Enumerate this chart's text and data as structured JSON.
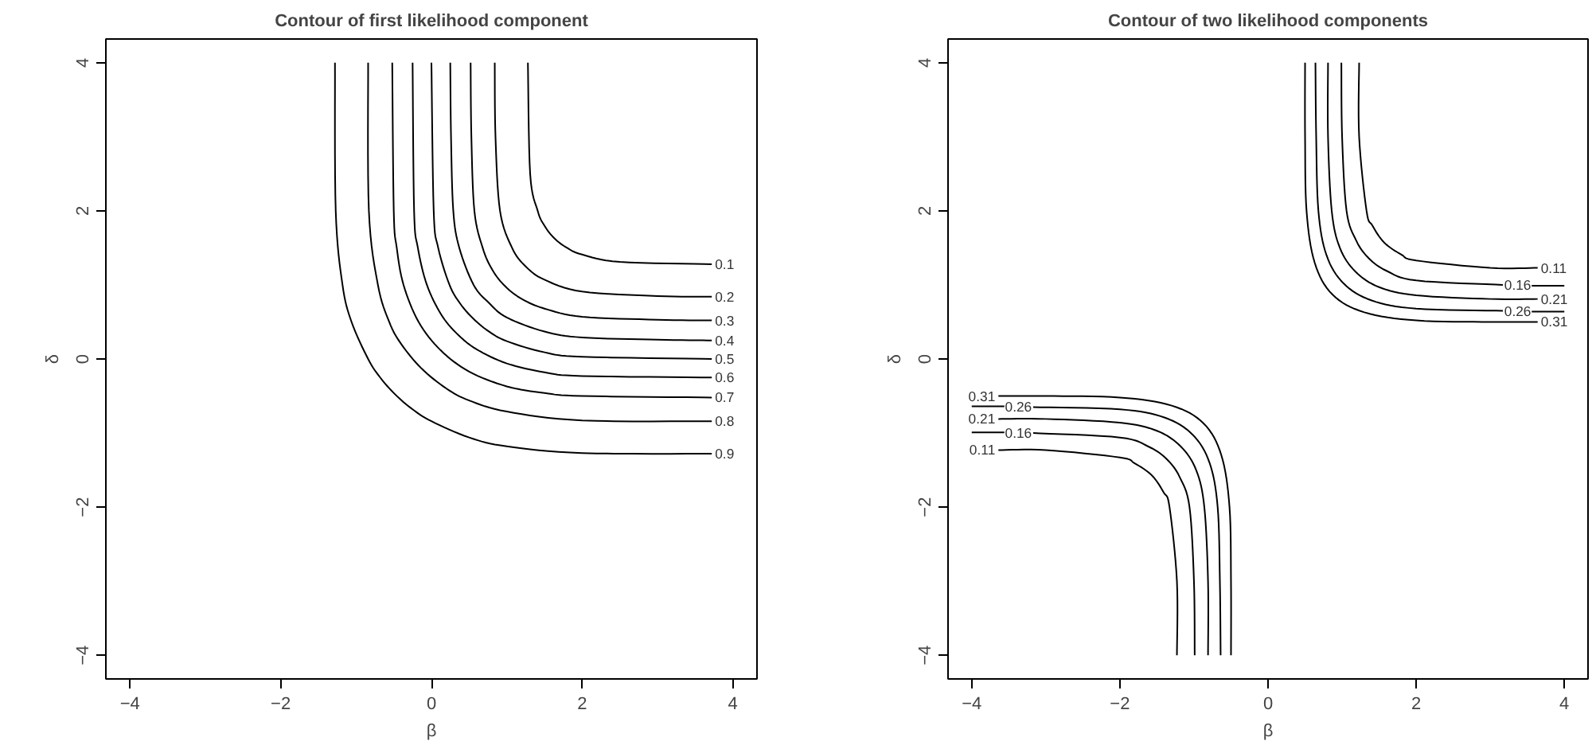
{
  "chart_data": [
    {
      "type": "line",
      "title": "Contour of first likelihood component",
      "xlabel": "β",
      "ylabel": "δ",
      "xlim": [
        -4.32,
        4.32
      ],
      "ylim": [
        -4.32,
        4.32
      ],
      "xticks": [
        -4,
        -2,
        0,
        2,
        4
      ],
      "yticks": [
        -4,
        -2,
        0,
        2,
        4
      ],
      "grid": false,
      "series": [
        {
          "name": "0.1",
          "color": "#000000",
          "x": [
            1.28,
            1.31,
            1.41,
            1.5,
            1.63,
            1.8,
            2,
            2.5,
            3.72
          ],
          "values": [
            4,
            2.5,
            2,
            1.8,
            1.63,
            1.5,
            1.41,
            1.31,
            1.28
          ]
        },
        {
          "name": "0.2",
          "color": "#000000",
          "x": [
            0.84,
            0.85,
            0.91,
            1.07,
            1.25,
            1.5,
            2,
            3,
            3.72
          ],
          "values": [
            4,
            3,
            2,
            1.5,
            1.25,
            1.07,
            0.91,
            0.85,
            0.84
          ]
        },
        {
          "name": "0.3",
          "color": "#000000",
          "x": [
            0.52,
            0.53,
            0.57,
            0.68,
            0.81,
            0.98,
            1.2,
            1.5,
            2,
            3,
            3.72
          ],
          "values": [
            4,
            3,
            2,
            1.5,
            1.2,
            0.98,
            0.81,
            0.68,
            0.57,
            0.53,
            0.52
          ]
        },
        {
          "name": "0.4",
          "color": "#000000",
          "x": [
            0.25,
            0.26,
            0.29,
            0.37,
            0.56,
            0.76,
            1,
            1.5,
            2,
            3,
            3.72
          ],
          "values": [
            4,
            3,
            2,
            1.5,
            1,
            0.76,
            0.56,
            0.37,
            0.29,
            0.26,
            0.25
          ]
        },
        {
          "name": "0.5",
          "color": "#000000",
          "x": [
            0,
            0.03,
            0.09,
            0.24,
            0.38,
            0.55,
            0.75,
            1,
            1.5,
            2,
            3.72
          ],
          "values": [
            4,
            2,
            1.5,
            1,
            0.75,
            0.55,
            0.38,
            0.24,
            0.09,
            0.03,
            0
          ]
        },
        {
          "name": "0.6",
          "color": "#000000",
          "x": [
            -0.25,
            -0.23,
            -0.18,
            -0.06,
            0.13,
            0.34,
            0.6,
            1,
            1.5,
            2,
            3.72
          ],
          "values": [
            4,
            2,
            1.5,
            1,
            0.6,
            0.34,
            0.13,
            -0.06,
            -0.18,
            -0.23,
            -0.25
          ]
        },
        {
          "name": "0.7",
          "color": "#000000",
          "x": [
            -0.52,
            -0.5,
            -0.46,
            -0.37,
            -0.17,
            0.12,
            0.5,
            1,
            1.5,
            2,
            3.72
          ],
          "values": [
            4,
            2,
            1.5,
            1,
            0.5,
            0.12,
            -0.17,
            -0.37,
            -0.46,
            -0.5,
            -0.52
          ]
        },
        {
          "name": "0.8",
          "color": "#000000",
          "x": [
            -0.84,
            -0.83,
            -0.71,
            -0.56,
            -0.4,
            -0.13,
            0.2,
            0.5,
            1,
            2,
            3.72
          ],
          "values": [
            4,
            2,
            1,
            0.5,
            0.2,
            -0.13,
            -0.4,
            -0.56,
            -0.71,
            -0.83,
            -0.84
          ]
        },
        {
          "name": "0.9",
          "color": "#000000",
          "x": [
            -1.28,
            -1.27,
            -1.18,
            -1.06,
            -0.84,
            -0.68,
            -0.48,
            -0.25,
            0,
            0.5,
            1,
            2,
            3.72
          ],
          "values": [
            4,
            2,
            1,
            0.5,
            0,
            -0.25,
            -0.48,
            -0.68,
            -0.84,
            -1.06,
            -1.18,
            -1.27,
            -1.28
          ]
        }
      ]
    },
    {
      "type": "line",
      "title": "Contour of two likelihood components",
      "xlabel": "β",
      "ylabel": "δ",
      "xlim": [
        -4.32,
        4.32
      ],
      "ylim": [
        -4.32,
        4.32
      ],
      "xticks": [
        -4,
        -2,
        0,
        2,
        4
      ],
      "yticks": [
        -4,
        -2,
        0,
        2,
        4
      ],
      "grid": false,
      "series": [
        {
          "name": "0.11",
          "color": "#000000",
          "x": [
            1.23,
            1.23,
            1.33,
            1.41,
            1.57,
            1.8,
            2,
            3,
            3.64
          ],
          "values": [
            4,
            3,
            2,
            1.8,
            1.57,
            1.41,
            1.33,
            1.23,
            1.23
          ]
        },
        {
          "name": "0.16",
          "color": "#000000",
          "x": [
            0.99,
            1,
            1.06,
            1.19,
            1.36,
            1.6,
            2,
            3.17,
            3.37,
            3.56,
            4
          ],
          "values": [
            4,
            3,
            2,
            1.6,
            1.36,
            1.19,
            1.06,
            1,
            null,
            0.99,
            0.99
          ]
        },
        {
          "name": "0.21",
          "color": "#000000",
          "x": [
            0.81,
            0.81,
            0.86,
            0.97,
            1.18,
            1.5,
            2,
            3,
            3.64
          ],
          "values": [
            4,
            3,
            2,
            1.5,
            1.18,
            0.97,
            0.86,
            0.81,
            0.81
          ]
        },
        {
          "name": "0.26",
          "color": "#000000",
          "x": [
            0.64,
            0.65,
            0.68,
            0.79,
            1.02,
            1.4,
            2,
            3.17,
            3.37,
            3.56,
            4
          ],
          "values": [
            4,
            3,
            2,
            1.4,
            1.02,
            0.79,
            0.68,
            0.65,
            null,
            0.64,
            0.64
          ]
        },
        {
          "name": "0.31",
          "color": "#000000",
          "x": [
            0.5,
            0.5,
            0.52,
            0.63,
            0.87,
            1.3,
            2,
            3,
            3.64
          ],
          "values": [
            4,
            3,
            2,
            1.3,
            0.87,
            0.63,
            0.52,
            0.5,
            0.5
          ]
        },
        {
          "name": "0.11",
          "color": "#000000",
          "x": [
            -1.23,
            -1.23,
            -1.33,
            -1.41,
            -1.57,
            -1.8,
            -2,
            -3,
            -3.64
          ],
          "values": [
            -4,
            -3,
            -2,
            -1.8,
            -1.57,
            -1.41,
            -1.33,
            -1.23,
            -1.23
          ]
        },
        {
          "name": "0.16",
          "color": "#000000",
          "x": [
            -0.99,
            -1,
            -1.06,
            -1.19,
            -1.36,
            -1.6,
            -2,
            -3.17,
            -3.37,
            -3.56,
            -4
          ],
          "values": [
            -4,
            -3,
            -2,
            -1.6,
            -1.36,
            -1.19,
            -1.06,
            -1,
            null,
            -0.99,
            -0.99
          ]
        },
        {
          "name": "0.21",
          "color": "#000000",
          "x": [
            -0.81,
            -0.81,
            -0.86,
            -0.97,
            -1.18,
            -1.5,
            -2,
            -3,
            -3.64
          ],
          "values": [
            -4,
            -3,
            -2,
            -1.5,
            -1.18,
            -0.97,
            -0.86,
            -0.81,
            -0.81
          ]
        },
        {
          "name": "0.26",
          "color": "#000000",
          "x": [
            -0.64,
            -0.65,
            -0.68,
            -0.79,
            -1.02,
            -1.4,
            -2,
            -3.17,
            -3.37,
            -3.56,
            -4
          ],
          "values": [
            -4,
            -3,
            -2,
            -1.4,
            -1.02,
            -0.79,
            -0.68,
            -0.65,
            null,
            -0.64,
            -0.64
          ]
        },
        {
          "name": "0.31",
          "color": "#000000",
          "x": [
            -0.5,
            -0.5,
            -0.52,
            -0.63,
            -0.87,
            -1.3,
            -2,
            -3,
            -3.64
          ],
          "values": [
            -4,
            -3,
            -2,
            -1.3,
            -0.87,
            -0.63,
            -0.52,
            -0.5,
            -0.5
          ]
        }
      ]
    }
  ]
}
